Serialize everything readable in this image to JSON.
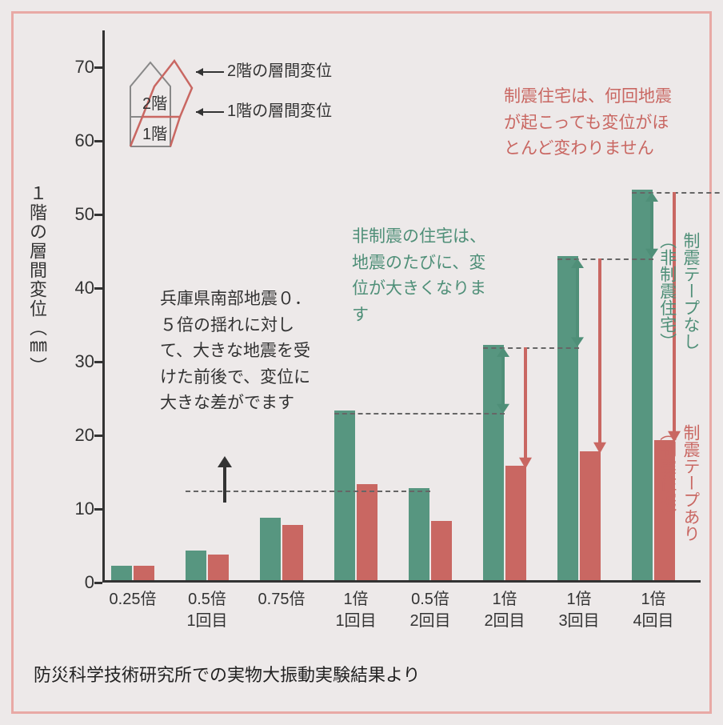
{
  "chart": {
    "type": "bar",
    "background_color": "#ede9e9",
    "frame_color": "#e8a9a5",
    "axis_color": "#333333",
    "y_axis": {
      "title": "１階の層間変位（㎜）",
      "min": 0,
      "max": 75,
      "tick_step": 10,
      "ticks": [
        0,
        10,
        20,
        30,
        40,
        50,
        60,
        70
      ],
      "y_top_value": 75,
      "label_fontsize": 22
    },
    "categories": [
      {
        "line1": "0.25倍",
        "line2": ""
      },
      {
        "line1": "0.5倍",
        "line2": "1回目"
      },
      {
        "line1": "0.75倍",
        "line2": ""
      },
      {
        "line1": "1倍",
        "line2": "1回目"
      },
      {
        "line1": "0.5倍",
        "line2": "2回目"
      },
      {
        "line1": "1倍",
        "line2": "2回目"
      },
      {
        "line1": "1倍",
        "line2": "3回目"
      },
      {
        "line1": "1倍",
        "line2": "4回目"
      }
    ],
    "series": [
      {
        "name": "制震テープなし（非制震住宅）",
        "color": "#579680",
        "values": [
          2,
          4,
          8.5,
          23,
          12.5,
          32,
          44,
          53
        ]
      },
      {
        "name": "制震テープあり（制震住宅）",
        "color": "#c96762",
        "values": [
          2,
          3.5,
          7.5,
          13,
          8,
          15.5,
          17.5,
          19
        ]
      }
    ],
    "dash_lines": [
      {
        "y": 12.5,
        "x1_cat": 1,
        "x2_cat": 4
      },
      {
        "y": 23,
        "x1_cat": 3,
        "x2_cat": 5
      },
      {
        "y": 32,
        "x1_cat": 5,
        "x2_cat": 6
      },
      {
        "y": 44,
        "x1_cat": 6,
        "x2_cat": 7
      },
      {
        "y": 53,
        "x1_cat": 7,
        "x2_cat": 8
      }
    ],
    "annotations": {
      "black_text": "兵庫県南部地震０．５倍の揺れに対して、大きな地震を受けた前後で、変位に大きな差がでます",
      "green_text": "非制震の住宅は、地震のたびに、変位が大きくなります",
      "red_text": "制震住宅は、何回地震が起こっても変位がほとんど変わりません"
    },
    "legend": {
      "green_label": "制震テープなし\n（非制震住宅）",
      "green_color": "#4f8f78",
      "red_label": "制震テープあり\n（制震住宅）",
      "red_color": "#c96762"
    },
    "house_diagram": {
      "floor1_label": "1階",
      "floor2_label": "2階",
      "label_floor1": "1階の層間変位",
      "label_floor2": "2階の層間変位",
      "outline_color": "#777",
      "deformed_color": "#c96762"
    }
  },
  "footer": "防災科学技術研究所での実物大振動実験結果より"
}
